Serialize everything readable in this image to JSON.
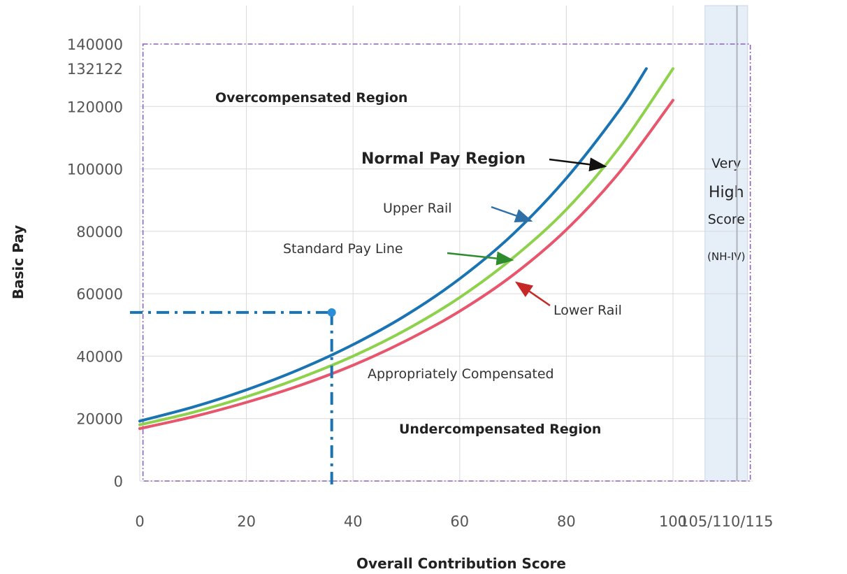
{
  "chart_data": {
    "type": "line",
    "xlabel": "Overall Contribution Score",
    "ylabel": "Basic Pay",
    "xlim": [
      0,
      115
    ],
    "ylim": [
      0,
      140000
    ],
    "x_tick_labels": [
      "0",
      "20",
      "40",
      "60",
      "80",
      "100",
      "105/110/115"
    ],
    "x_tick_values": [
      0,
      20,
      40,
      60,
      80,
      100,
      110
    ],
    "y_tick_labels": [
      "0",
      "20000",
      "40000",
      "60000",
      "80000",
      "100000",
      "120000",
      "132122",
      "140000"
    ],
    "y_tick_values": [
      0,
      20000,
      40000,
      60000,
      80000,
      100000,
      120000,
      132122,
      140000
    ],
    "grid": true,
    "series": [
      {
        "name": "Upper Rail",
        "color": "#1a74b4",
        "x": [
          0,
          10,
          20,
          30,
          40,
          50,
          60,
          70,
          80,
          90,
          95
        ],
        "y": [
          19200,
          23700,
          29200,
          35800,
          43700,
          53200,
          64800,
          79100,
          97000,
          118900,
          132122
        ]
      },
      {
        "name": "Standard Pay Line",
        "color": "#8ed14b",
        "x": [
          0,
          10,
          20,
          30,
          40,
          50,
          60,
          70,
          80,
          90,
          100
        ],
        "y": [
          18000,
          22000,
          27000,
          33000,
          40000,
          48500,
          58800,
          71500,
          87000,
          107000,
          132122
        ]
      },
      {
        "name": "Lower Rail",
        "color": "#e8566e",
        "x": [
          0,
          10,
          20,
          30,
          40,
          50,
          60,
          70,
          80,
          90,
          100
        ],
        "y": [
          16800,
          20600,
          25200,
          30600,
          37100,
          45000,
          54400,
          66000,
          80500,
          99000,
          122000
        ]
      }
    ],
    "marker": {
      "x": 36,
      "y": 54000,
      "color": "#1a74b4"
    },
    "shaded_band": {
      "x_range": [
        106,
        114
      ],
      "color": "#e6eef8",
      "lines": [
        "Very",
        "High",
        "Score",
        "(NH-IV)"
      ]
    },
    "annotations": {
      "overcompensated": "Overcompensated Region",
      "normal_pay": "Normal Pay Region",
      "upper_rail": "Upper Rail",
      "standard_pay_line": "Standard Pay Line",
      "lower_rail": "Lower Rail",
      "appropriately": "Appropriately Compensated",
      "undercompensated": "Undercompensated Region"
    }
  }
}
